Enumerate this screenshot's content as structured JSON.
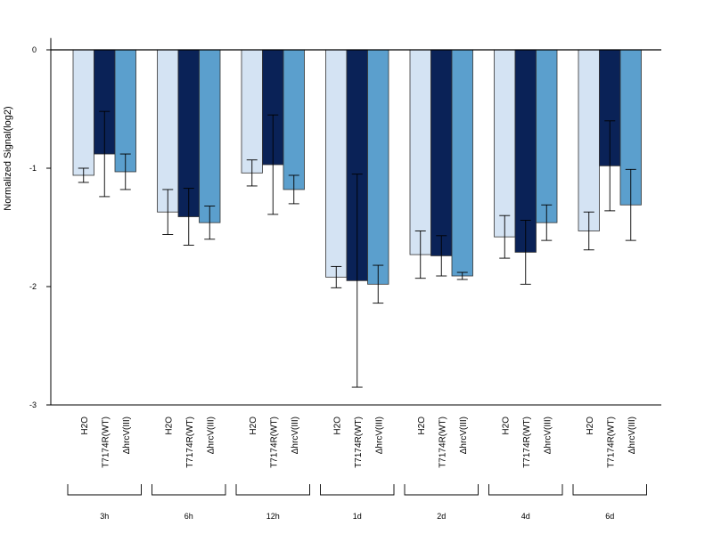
{
  "chart_data": {
    "type": "bar",
    "title": "",
    "ylabel": "Normalized Signal(log2)",
    "xlabel": "",
    "ylim": [
      -3,
      0.1
    ],
    "yticks": [
      0,
      -1,
      -2,
      -3
    ],
    "ytick_labels": [
      "0",
      "-1",
      "-2",
      "-3"
    ],
    "groups": [
      "3h",
      "6h",
      "12h",
      "1d",
      "2d",
      "4d",
      "6d"
    ],
    "series": [
      {
        "name": "H2O",
        "color": "#d4e3f3",
        "values": [
          -1.06,
          -1.37,
          -1.04,
          -1.92,
          -1.73,
          -1.58,
          -1.53
        ],
        "errors": [
          0.06,
          0.19,
          0.11,
          0.09,
          0.2,
          0.18,
          0.16
        ]
      },
      {
        "name": "T7174R(WT)",
        "color": "#0a2257",
        "values": [
          -0.88,
          -1.41,
          -0.97,
          -1.95,
          -1.74,
          -1.71,
          -0.98
        ],
        "errors": [
          0.36,
          0.24,
          0.42,
          0.9,
          0.17,
          0.27,
          0.38
        ]
      },
      {
        "name": "ΔhrcV(III)",
        "color": "#5b9fcd",
        "values": [
          -1.03,
          -1.46,
          -1.18,
          -1.98,
          -1.91,
          -1.46,
          -1.31
        ],
        "errors": [
          0.15,
          0.14,
          0.12,
          0.16,
          0.03,
          0.15,
          0.3
        ]
      }
    ]
  }
}
